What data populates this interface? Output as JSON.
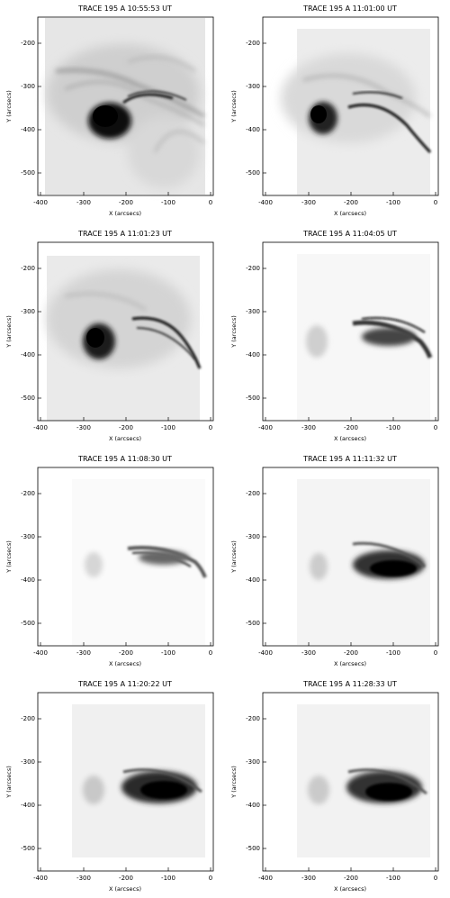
{
  "figure": {
    "panels": [
      {
        "title": "TRACE 195 A 10:55:53 UT",
        "xlabel": "X (arcsecs)",
        "ylabel": "Y (arcsecs)"
      },
      {
        "title": "TRACE 195 A 11:01:00 UT",
        "xlabel": "X (arcsecs)",
        "ylabel": "Y (arcsecs)"
      },
      {
        "title": "TRACE 195 A 11:01:23 UT",
        "xlabel": "X (arcsecs)",
        "ylabel": "Y (arcsecs)"
      },
      {
        "title": "TRACE 195 A 11:04:05 UT",
        "xlabel": "X (arcsecs)",
        "ylabel": "Y (arcsecs)"
      },
      {
        "title": "TRACE 195 A 11:08:30 UT",
        "xlabel": "X (arcsecs)",
        "ylabel": "Y (arcsecs)"
      },
      {
        "title": "TRACE 195 A 11:11:32 UT",
        "xlabel": "X (arcsecs)",
        "ylabel": "Y (arcsecs)"
      },
      {
        "title": "TRACE 195 A 11:20:22 UT",
        "xlabel": "X (arcsecs)",
        "ylabel": "Y (arcsecs)"
      },
      {
        "title": "TRACE 195 A 11:28:33 UT",
        "xlabel": "X (arcsecs)",
        "ylabel": "Y (arcsecs)"
      }
    ],
    "x_ticks": [
      "-400",
      "-300",
      "-200",
      "-100",
      "0"
    ],
    "y_ticks": [
      "-200",
      "-300",
      "-400",
      "-500"
    ]
  }
}
